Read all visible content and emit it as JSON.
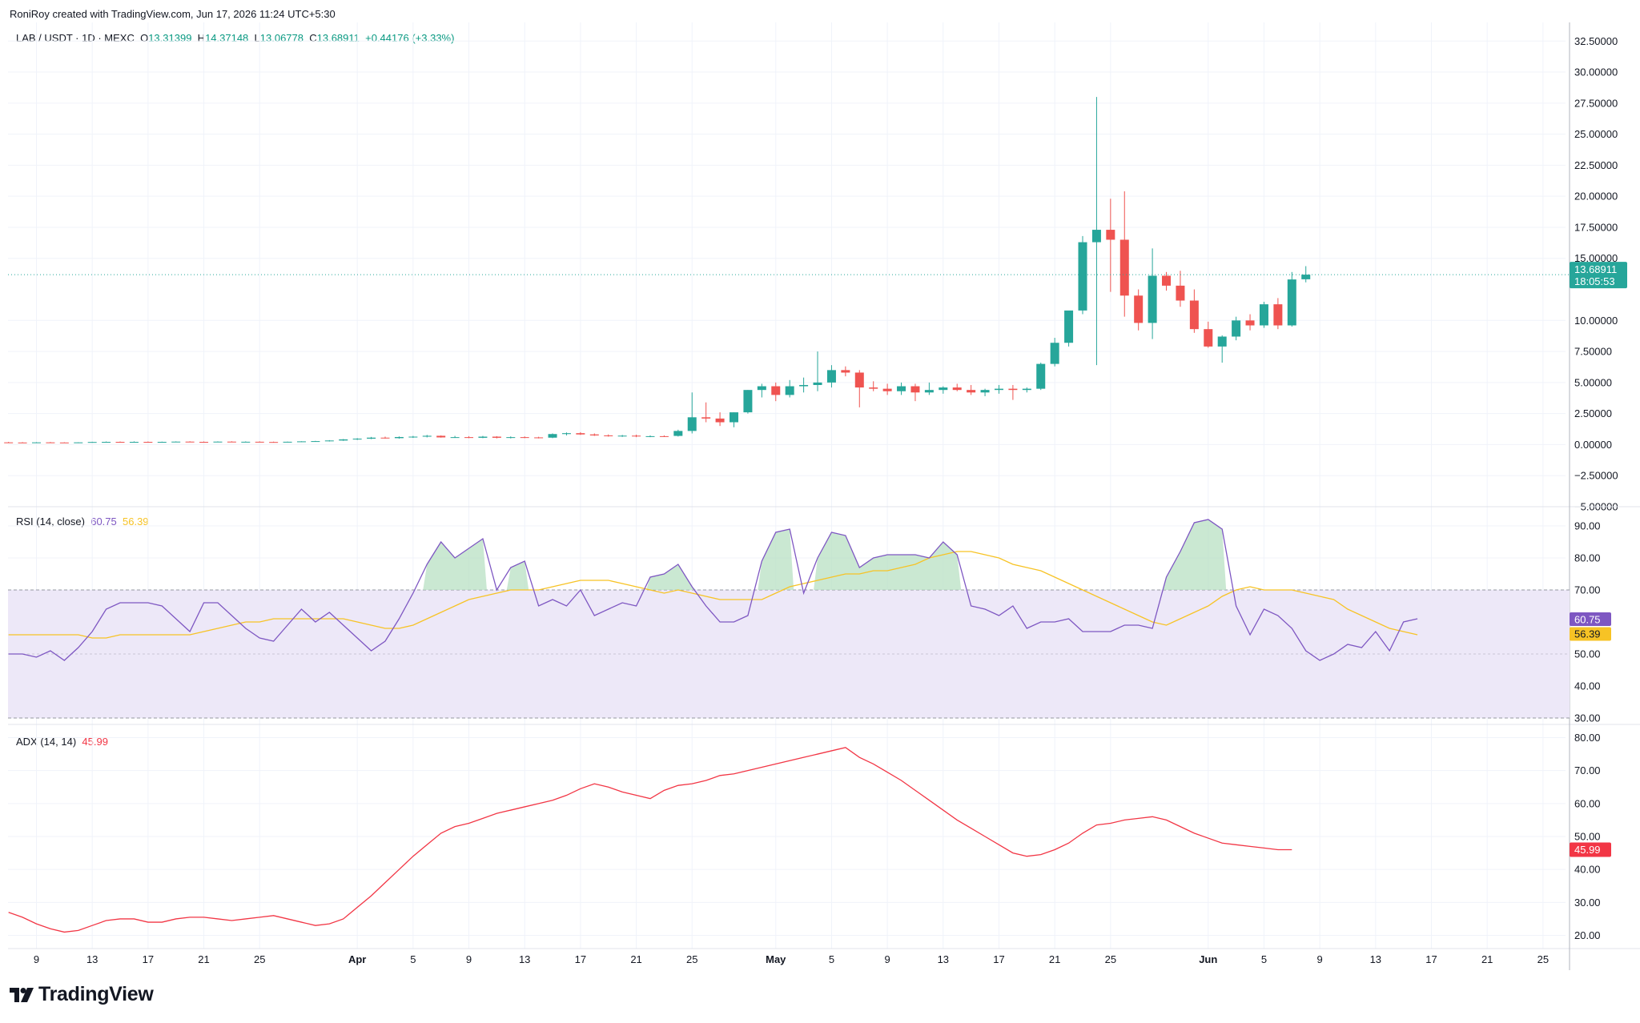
{
  "header": {
    "created_by": "RoniRoy created with TradingView.com, Jun 17, 2026 11:24 UTC+5:30",
    "symbol": "LAB / USDT · 1D · MEXC",
    "o_label": "O",
    "o_value": "13.31399",
    "h_label": "H",
    "h_value": "14.37148",
    "l_label": "L",
    "l_value": "13.06778",
    "c_label": "C",
    "c_value": "13.68911",
    "change": "+0.44176 (+3.33%)"
  },
  "rsi_legend": {
    "label": "RSI (14, close)",
    "rsi_value": "60.75",
    "ma_value": "56.39"
  },
  "adx_legend": {
    "label": "ADX (14, 14)",
    "value": "45.99"
  },
  "brand": {
    "logo_text": "TradingView"
  },
  "colors": {
    "up": "#26a69a",
    "down": "#ef5350",
    "rsi": "#7e57c2",
    "rsi_ma": "#f7c325",
    "adx": "#f23645",
    "rsi_band": "#ede8f8"
  },
  "chart_data": [
    {
      "type": "candlestick",
      "title": "LAB / USDT · 1D · MEXC",
      "ylim": [
        -5,
        34
      ],
      "yticks": [
        "32.50000",
        "30.00000",
        "27.50000",
        "25.00000",
        "22.50000",
        "20.00000",
        "17.50000",
        "15.00000",
        "10.00000",
        "7.50000",
        "5.00000",
        "2.50000",
        "0.00000",
        "−2.50000",
        "−5.00000"
      ],
      "last_price": "13.68911",
      "countdown": "18:05:53",
      "x_ticks": [
        "9",
        "13",
        "17",
        "21",
        "25",
        "Apr",
        "5",
        "9",
        "13",
        "17",
        "21",
        "25",
        "May",
        "5",
        "9",
        "13",
        "17",
        "21",
        "25",
        "Jun",
        "5",
        "9",
        "13",
        "17",
        "21",
        "25"
      ],
      "x_tick_days": [
        -23,
        -19,
        -15,
        -11,
        -7,
        0,
        4,
        8,
        12,
        16,
        20,
        24,
        30,
        34,
        38,
        42,
        46,
        50,
        54,
        61,
        65,
        69,
        73,
        77,
        81,
        85
      ],
      "x_start_day": -25,
      "candles": [
        {
          "o": 0.18,
          "h": 0.22,
          "l": 0.14,
          "c": 0.17
        },
        {
          "o": 0.17,
          "h": 0.2,
          "l": 0.14,
          "c": 0.16
        },
        {
          "o": 0.16,
          "h": 0.2,
          "l": 0.13,
          "c": 0.18
        },
        {
          "o": 0.18,
          "h": 0.21,
          "l": 0.15,
          "c": 0.17
        },
        {
          "o": 0.17,
          "h": 0.19,
          "l": 0.13,
          "c": 0.15
        },
        {
          "o": 0.15,
          "h": 0.19,
          "l": 0.12,
          "c": 0.18
        },
        {
          "o": 0.18,
          "h": 0.23,
          "l": 0.16,
          "c": 0.21
        },
        {
          "o": 0.21,
          "h": 0.25,
          "l": 0.18,
          "c": 0.22
        },
        {
          "o": 0.22,
          "h": 0.25,
          "l": 0.19,
          "c": 0.21
        },
        {
          "o": 0.21,
          "h": 0.26,
          "l": 0.19,
          "c": 0.22
        },
        {
          "o": 0.22,
          "h": 0.25,
          "l": 0.19,
          "c": 0.2
        },
        {
          "o": 0.2,
          "h": 0.24,
          "l": 0.17,
          "c": 0.22
        },
        {
          "o": 0.22,
          "h": 0.26,
          "l": 0.2,
          "c": 0.24
        },
        {
          "o": 0.24,
          "h": 0.27,
          "l": 0.21,
          "c": 0.22
        },
        {
          "o": 0.22,
          "h": 0.25,
          "l": 0.19,
          "c": 0.21
        },
        {
          "o": 0.21,
          "h": 0.26,
          "l": 0.19,
          "c": 0.24
        },
        {
          "o": 0.24,
          "h": 0.27,
          "l": 0.2,
          "c": 0.22
        },
        {
          "o": 0.22,
          "h": 0.26,
          "l": 0.19,
          "c": 0.23
        },
        {
          "o": 0.23,
          "h": 0.26,
          "l": 0.2,
          "c": 0.21
        },
        {
          "o": 0.21,
          "h": 0.24,
          "l": 0.19,
          "c": 0.2
        },
        {
          "o": 0.2,
          "h": 0.24,
          "l": 0.18,
          "c": 0.23
        },
        {
          "o": 0.23,
          "h": 0.27,
          "l": 0.21,
          "c": 0.26
        },
        {
          "o": 0.26,
          "h": 0.3,
          "l": 0.23,
          "c": 0.28
        },
        {
          "o": 0.28,
          "h": 0.36,
          "l": 0.25,
          "c": 0.33
        },
        {
          "o": 0.33,
          "h": 0.45,
          "l": 0.3,
          "c": 0.42
        },
        {
          "o": 0.42,
          "h": 0.52,
          "l": 0.37,
          "c": 0.48
        },
        {
          "o": 0.48,
          "h": 0.62,
          "l": 0.44,
          "c": 0.56
        },
        {
          "o": 0.56,
          "h": 0.64,
          "l": 0.49,
          "c": 0.52
        },
        {
          "o": 0.52,
          "h": 0.66,
          "l": 0.48,
          "c": 0.61
        },
        {
          "o": 0.61,
          "h": 0.7,
          "l": 0.54,
          "c": 0.64
        },
        {
          "o": 0.64,
          "h": 0.78,
          "l": 0.58,
          "c": 0.71
        },
        {
          "o": 0.71,
          "h": 0.74,
          "l": 0.56,
          "c": 0.58
        },
        {
          "o": 0.58,
          "h": 0.7,
          "l": 0.54,
          "c": 0.6
        },
        {
          "o": 0.6,
          "h": 0.68,
          "l": 0.52,
          "c": 0.55
        },
        {
          "o": 0.55,
          "h": 0.7,
          "l": 0.52,
          "c": 0.64
        },
        {
          "o": 0.64,
          "h": 0.68,
          "l": 0.5,
          "c": 0.55
        },
        {
          "o": 0.55,
          "h": 0.66,
          "l": 0.5,
          "c": 0.6
        },
        {
          "o": 0.6,
          "h": 0.66,
          "l": 0.52,
          "c": 0.58
        },
        {
          "o": 0.58,
          "h": 0.63,
          "l": 0.5,
          "c": 0.56
        },
        {
          "o": 0.56,
          "h": 0.9,
          "l": 0.52,
          "c": 0.85
        },
        {
          "o": 0.85,
          "h": 0.98,
          "l": 0.74,
          "c": 0.92
        },
        {
          "o": 0.92,
          "h": 1.0,
          "l": 0.78,
          "c": 0.82
        },
        {
          "o": 0.82,
          "h": 0.9,
          "l": 0.7,
          "c": 0.74
        },
        {
          "o": 0.74,
          "h": 0.82,
          "l": 0.64,
          "c": 0.7
        },
        {
          "o": 0.7,
          "h": 0.78,
          "l": 0.62,
          "c": 0.72
        },
        {
          "o": 0.72,
          "h": 0.8,
          "l": 0.6,
          "c": 0.66
        },
        {
          "o": 0.66,
          "h": 0.74,
          "l": 0.6,
          "c": 0.68
        },
        {
          "o": 0.68,
          "h": 0.74,
          "l": 0.62,
          "c": 0.66
        },
        {
          "o": 0.7,
          "h": 1.2,
          "l": 0.65,
          "c": 1.1
        },
        {
          "o": 1.1,
          "h": 4.2,
          "l": 0.9,
          "c": 2.2
        },
        {
          "o": 2.2,
          "h": 3.4,
          "l": 1.8,
          "c": 2.1
        },
        {
          "o": 2.1,
          "h": 2.6,
          "l": 1.5,
          "c": 1.8
        },
        {
          "o": 1.8,
          "h": 2.6,
          "l": 1.4,
          "c": 2.6
        },
        {
          "o": 2.6,
          "h": 4.4,
          "l": 2.5,
          "c": 4.4
        },
        {
          "o": 4.4,
          "h": 4.9,
          "l": 3.8,
          "c": 4.7
        },
        {
          "o": 4.7,
          "h": 5.0,
          "l": 3.5,
          "c": 4.0
        },
        {
          "o": 4.0,
          "h": 5.2,
          "l": 3.8,
          "c": 4.7
        },
        {
          "o": 4.7,
          "h": 5.4,
          "l": 4.2,
          "c": 4.8
        },
        {
          "o": 4.8,
          "h": 7.5,
          "l": 4.3,
          "c": 5.0
        },
        {
          "o": 5.0,
          "h": 6.4,
          "l": 4.6,
          "c": 6.0
        },
        {
          "o": 6.0,
          "h": 6.3,
          "l": 5.5,
          "c": 5.8
        },
        {
          "o": 5.8,
          "h": 6.0,
          "l": 3.0,
          "c": 4.6
        },
        {
          "o": 4.6,
          "h": 5.1,
          "l": 4.3,
          "c": 4.5
        },
        {
          "o": 4.5,
          "h": 4.9,
          "l": 4.0,
          "c": 4.3
        },
        {
          "o": 4.3,
          "h": 5.0,
          "l": 4.0,
          "c": 4.7
        },
        {
          "o": 4.7,
          "h": 4.9,
          "l": 3.5,
          "c": 4.2
        },
        {
          "o": 4.2,
          "h": 5.0,
          "l": 4.0,
          "c": 4.4
        },
        {
          "o": 4.4,
          "h": 4.7,
          "l": 4.1,
          "c": 4.6
        },
        {
          "o": 4.6,
          "h": 4.9,
          "l": 4.3,
          "c": 4.4
        },
        {
          "o": 4.4,
          "h": 4.8,
          "l": 4.0,
          "c": 4.2
        },
        {
          "o": 4.2,
          "h": 4.5,
          "l": 3.9,
          "c": 4.4
        },
        {
          "o": 4.4,
          "h": 4.8,
          "l": 4.1,
          "c": 4.5
        },
        {
          "o": 4.5,
          "h": 4.8,
          "l": 3.6,
          "c": 4.4
        },
        {
          "o": 4.4,
          "h": 4.6,
          "l": 4.2,
          "c": 4.5
        },
        {
          "o": 4.5,
          "h": 6.6,
          "l": 4.4,
          "c": 6.5
        },
        {
          "o": 6.5,
          "h": 8.6,
          "l": 6.3,
          "c": 8.2
        },
        {
          "o": 8.2,
          "h": 10.6,
          "l": 7.9,
          "c": 10.8
        },
        {
          "o": 10.8,
          "h": 16.8,
          "l": 10.5,
          "c": 16.3
        },
        {
          "o": 16.3,
          "h": 28.0,
          "l": 6.4,
          "c": 17.3
        },
        {
          "o": 17.3,
          "h": 19.8,
          "l": 12.3,
          "c": 16.5
        },
        {
          "o": 16.5,
          "h": 20.4,
          "l": 10.3,
          "c": 12.0
        },
        {
          "o": 12.0,
          "h": 12.5,
          "l": 9.2,
          "c": 9.8
        },
        {
          "o": 9.8,
          "h": 15.8,
          "l": 8.5,
          "c": 13.6
        },
        {
          "o": 13.6,
          "h": 13.9,
          "l": 12.4,
          "c": 12.8
        },
        {
          "o": 12.8,
          "h": 14.0,
          "l": 11.1,
          "c": 11.6
        },
        {
          "o": 11.6,
          "h": 12.5,
          "l": 9.0,
          "c": 9.3
        },
        {
          "o": 9.3,
          "h": 9.9,
          "l": 7.8,
          "c": 7.9
        },
        {
          "o": 7.9,
          "h": 8.8,
          "l": 6.6,
          "c": 8.7
        },
        {
          "o": 8.7,
          "h": 10.3,
          "l": 8.4,
          "c": 10.0
        },
        {
          "o": 10.0,
          "h": 10.5,
          "l": 9.2,
          "c": 9.6
        },
        {
          "o": 9.6,
          "h": 11.5,
          "l": 9.4,
          "c": 11.3
        },
        {
          "o": 11.3,
          "h": 11.8,
          "l": 9.3,
          "c": 9.6
        },
        {
          "o": 9.6,
          "h": 13.9,
          "l": 9.5,
          "c": 13.3
        },
        {
          "o": 13.31399,
          "h": 14.37148,
          "l": 13.06778,
          "c": 13.68911
        }
      ]
    },
    {
      "type": "line",
      "title": "RSI (14, close)",
      "ylim": [
        28,
        96
      ],
      "yticks": [
        "90.00",
        "80.00",
        "70.00",
        "60.00",
        "50.00",
        "40.00",
        "30.00"
      ],
      "band": [
        30,
        70
      ],
      "rsi_value": "60.75",
      "ma_value": "56.39",
      "series": [
        {
          "name": "RSI",
          "values": [
            50,
            50,
            49,
            51,
            48,
            52,
            57,
            64,
            66,
            66,
            66,
            65,
            61,
            57,
            66,
            66,
            62,
            58,
            55,
            54,
            59,
            64,
            60,
            63,
            59,
            55,
            51,
            54,
            61,
            69,
            78,
            85,
            80,
            83,
            86,
            70,
            77,
            79,
            65,
            67,
            65,
            70,
            62,
            64,
            66,
            65,
            74,
            75,
            78,
            71,
            65,
            60,
            60,
            62,
            79,
            88,
            89,
            69,
            80,
            88,
            87,
            77,
            80,
            81,
            81,
            81,
            80,
            85,
            81,
            65,
            64,
            62,
            65,
            58,
            60,
            60,
            61,
            57,
            57,
            57,
            59,
            59,
            58,
            74,
            82,
            91,
            92,
            89,
            65,
            56,
            64,
            62,
            58,
            51,
            48,
            50,
            53,
            52,
            57,
            51,
            60,
            61
          ]
        },
        {
          "name": "RSI MA",
          "values": [
            56,
            56,
            56,
            56,
            56,
            56,
            55,
            55,
            56,
            56,
            56,
            56,
            56,
            56,
            57,
            58,
            59,
            60,
            60,
            61,
            61,
            61,
            61,
            61,
            61,
            60,
            59,
            58,
            58,
            59,
            61,
            63,
            65,
            67,
            68,
            69,
            70,
            70,
            70,
            71,
            72,
            73,
            73,
            73,
            72,
            71,
            70,
            69,
            70,
            69,
            68,
            67,
            67,
            67,
            67,
            69,
            71,
            72,
            73,
            74,
            75,
            75,
            76,
            76,
            77,
            78,
            80,
            81,
            82,
            82,
            81,
            80,
            78,
            77,
            76,
            74,
            72,
            70,
            68,
            66,
            64,
            62,
            60,
            59,
            61,
            63,
            65,
            68,
            70,
            71,
            70,
            70,
            70,
            69,
            68,
            67,
            64,
            62,
            60,
            58,
            57,
            56
          ]
        }
      ]
    },
    {
      "type": "line",
      "title": "ADX (14, 14)",
      "ylim": [
        16,
        84
      ],
      "yticks": [
        "80.00",
        "70.00",
        "60.00",
        "50.00",
        "40.00",
        "30.00",
        "20.00"
      ],
      "value": "45.99",
      "series": [
        {
          "name": "ADX",
          "values": [
            27,
            25.5,
            23.5,
            22,
            21,
            21.5,
            23,
            24.5,
            25,
            25,
            24,
            24,
            25,
            25.5,
            25.5,
            25,
            24.5,
            25,
            25.5,
            26,
            25,
            24,
            23,
            23.5,
            25,
            28.5,
            32,
            36,
            40,
            44,
            47.5,
            51,
            53,
            54,
            55.5,
            57,
            58,
            59,
            60,
            61,
            62.5,
            64.5,
            66,
            65,
            63.5,
            62.5,
            61.5,
            64,
            65.5,
            66,
            67,
            68.5,
            69,
            70,
            71,
            72,
            73,
            74,
            75,
            76,
            77,
            74,
            72,
            69.5,
            67,
            64,
            61,
            58,
            55,
            52.5,
            50,
            47.5,
            45,
            44,
            44.5,
            46,
            48,
            51,
            53.5,
            54,
            55,
            55.5,
            56,
            55,
            53,
            51,
            49.5,
            48,
            47.5,
            47,
            46.5,
            46,
            46
          ]
        }
      ]
    }
  ]
}
